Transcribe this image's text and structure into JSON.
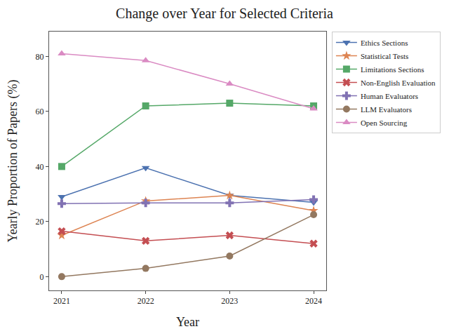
{
  "chart_data": {
    "type": "line",
    "title": "Change over Year for Selected Criteria",
    "x_label": "Year",
    "y_label": "Yearly Proportion of Papers (%)",
    "x": [
      2021,
      2022,
      2023,
      2024
    ],
    "xlim": [
      2020.85,
      2024.15
    ],
    "xticks": [
      2021,
      2022,
      2023,
      2024
    ],
    "ylim": [
      -5,
      89
    ],
    "yticks": [
      0,
      20,
      40,
      60,
      80
    ],
    "grid": false,
    "legend": "right",
    "series": [
      {
        "name": "Ethics Sections",
        "color": "#4c72b0",
        "marker": "triangle-down",
        "line_style": "solid",
        "values": [
          29,
          39.5,
          29.5,
          27
        ]
      },
      {
        "name": "Statistical Tests",
        "color": "#dd8452",
        "marker": "star",
        "line_style": "solid",
        "values": [
          15,
          27.5,
          29.5,
          24
        ]
      },
      {
        "name": "Limitations Sections",
        "color": "#55a868",
        "marker": "square",
        "line_style": "solid",
        "values": [
          40,
          62,
          63,
          62
        ]
      },
      {
        "name": "Non-English Evaluation",
        "color": "#c44e52",
        "marker": "x",
        "line_style": "solid",
        "values": [
          16.5,
          13,
          15,
          12
        ]
      },
      {
        "name": "Human Evaluators",
        "color": "#8172b3",
        "marker": "cross",
        "line_style": "solid",
        "values": [
          26.5,
          26.8,
          26.8,
          28
        ]
      },
      {
        "name": "LLM Evaluators",
        "color": "#937860",
        "marker": "circle",
        "line_style": "solid",
        "values": [
          0,
          3,
          7.5,
          22.5
        ]
      },
      {
        "name": "Open Sourcing",
        "color": "#da8bc3",
        "marker": "triangle-up",
        "line_style": "solid",
        "values": [
          81,
          78.5,
          70,
          61
        ]
      }
    ]
  }
}
